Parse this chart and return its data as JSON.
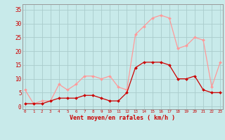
{
  "x": [
    0,
    1,
    2,
    3,
    4,
    5,
    6,
    7,
    8,
    9,
    10,
    11,
    12,
    13,
    14,
    15,
    16,
    17,
    18,
    19,
    20,
    21,
    22,
    23
  ],
  "wind_avg": [
    1,
    1,
    1,
    2,
    3,
    3,
    3,
    4,
    4,
    3,
    2,
    2,
    5,
    14,
    16,
    16,
    16,
    15,
    10,
    10,
    11,
    6,
    5,
    5
  ],
  "wind_gust": [
    6,
    1,
    2,
    2,
    8,
    6,
    8,
    11,
    11,
    10,
    11,
    7,
    6,
    26,
    29,
    32,
    33,
    32,
    21,
    22,
    25,
    24,
    7,
    16
  ],
  "avg_color": "#cc0000",
  "gust_color": "#ff9999",
  "bg_color": "#c8eaea",
  "grid_color": "#aacccc",
  "axis_color": "#cc0000",
  "ylabel_values": [
    0,
    5,
    10,
    15,
    20,
    25,
    30,
    35
  ],
  "ylim": [
    -1,
    37
  ],
  "xlim": [
    -0.3,
    23.3
  ],
  "xlabel": "Vent moyen/en rafales ( km/h )",
  "markersize": 2.0,
  "linewidth": 0.9
}
